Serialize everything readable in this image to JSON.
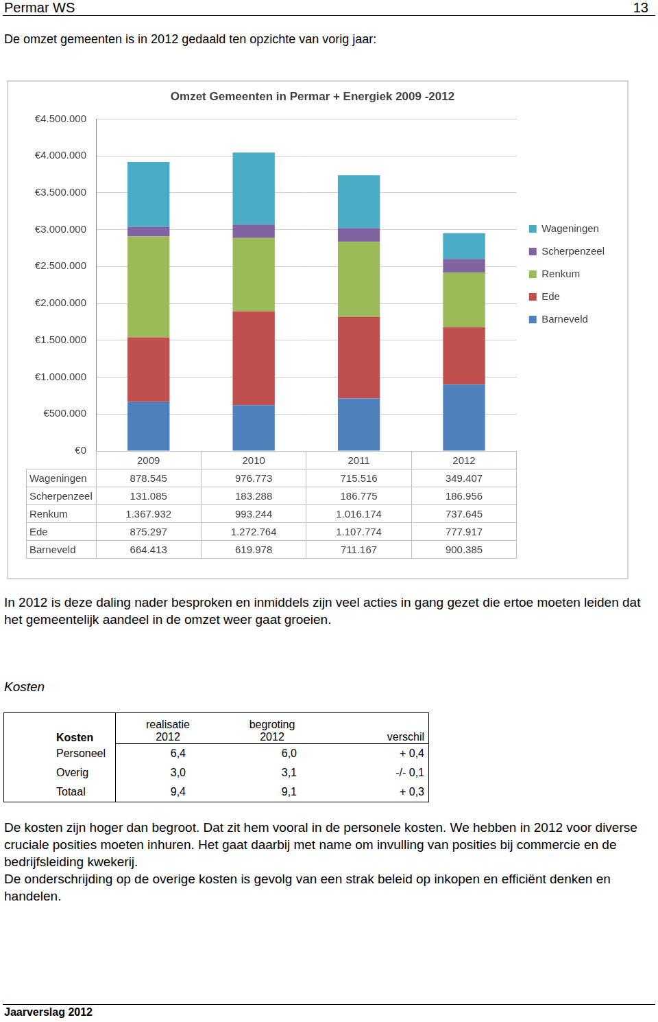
{
  "header": {
    "left": "Permar WS",
    "right": "13"
  },
  "intro": "De omzet gemeenten is in 2012 gedaald ten opzichte van vorig jaar:",
  "chart_data": {
    "type": "bar",
    "title": "Omzet Gemeenten in Permar + Energiek 2009 -2012",
    "categories": [
      "2009",
      "2010",
      "2011",
      "2012"
    ],
    "stacked": true,
    "legend": "right",
    "grid": true,
    "ylim": [
      0,
      4500000
    ],
    "yticks": [
      {
        "value": 0,
        "label": "€0"
      },
      {
        "value": 500000,
        "label": "€500.000"
      },
      {
        "value": 1000000,
        "label": "€1.000.000"
      },
      {
        "value": 1500000,
        "label": "€1.500.000"
      },
      {
        "value": 2000000,
        "label": "€2.000.000"
      },
      {
        "value": 2500000,
        "label": "€2.500.000"
      },
      {
        "value": 3000000,
        "label": "€3.000.000"
      },
      {
        "value": 3500000,
        "label": "€3.500.000"
      },
      {
        "value": 4000000,
        "label": "€4.000.000"
      },
      {
        "value": 4500000,
        "label": "€4.500.000"
      }
    ],
    "series": [
      {
        "name": "Wageningen",
        "color": "#4bacc6",
        "values": [
          878545,
          976773,
          715516,
          349407
        ],
        "value_labels": [
          "878.545",
          "976.773",
          "715.516",
          "349.407"
        ]
      },
      {
        "name": "Scherpenzeel",
        "color": "#8064a2",
        "values": [
          131085,
          183288,
          186775,
          186956
        ],
        "value_labels": [
          "131.085",
          "183.288",
          "186.775",
          "186.956"
        ]
      },
      {
        "name": "Renkum",
        "color": "#9bbb59",
        "values": [
          1367932,
          993244,
          1016174,
          737645
        ],
        "value_labels": [
          "1.367.932",
          "993.244",
          "1.016.174",
          "737.645"
        ]
      },
      {
        "name": "Ede",
        "color": "#c0504d",
        "values": [
          875297,
          1272764,
          1107774,
          777917
        ],
        "value_labels": [
          "875.297",
          "1.272.764",
          "1.107.774",
          "777.917"
        ]
      },
      {
        "name": "Barneveld",
        "color": "#4f81bd",
        "values": [
          664413,
          619978,
          711167,
          900385
        ],
        "value_labels": [
          "664.413",
          "619.978",
          "711.167",
          "900.385"
        ]
      }
    ]
  },
  "paragraph_after_chart": "In 2012 is deze daling nader besproken en inmiddels zijn veel acties in gang gezet die ertoe moeten leiden dat het gemeentelijk aandeel in de omzet weer gaat groeien.",
  "section_title": "Kosten",
  "cost_table": {
    "header": [
      [
        "Kosten"
      ],
      [
        "realisatie",
        "2012"
      ],
      [
        "begroting",
        "2012"
      ],
      [
        "verschil"
      ]
    ],
    "rows": [
      [
        "Personeel",
        "6,4",
        "6,0",
        "+ 0,4"
      ],
      [
        "Overig",
        "3,0",
        "3,1",
        "-/- 0,1"
      ],
      [
        "Totaal",
        "9,4",
        "9,1",
        "+ 0,3"
      ]
    ]
  },
  "paragraphs": [
    "De kosten zijn hoger dan begroot. Dat zit hem vooral in de personele kosten. We hebben in 2012 voor diverse cruciale posities moeten inhuren. Het gaat daarbij met name om invulling van posities bij commercie en de bedrijfsleiding kwekerij.",
    "De onderschrijding op de overige kosten is gevolg van een strak beleid op inkopen en efficiënt denken en handelen."
  ],
  "footer": "Jaarverslag 2012"
}
